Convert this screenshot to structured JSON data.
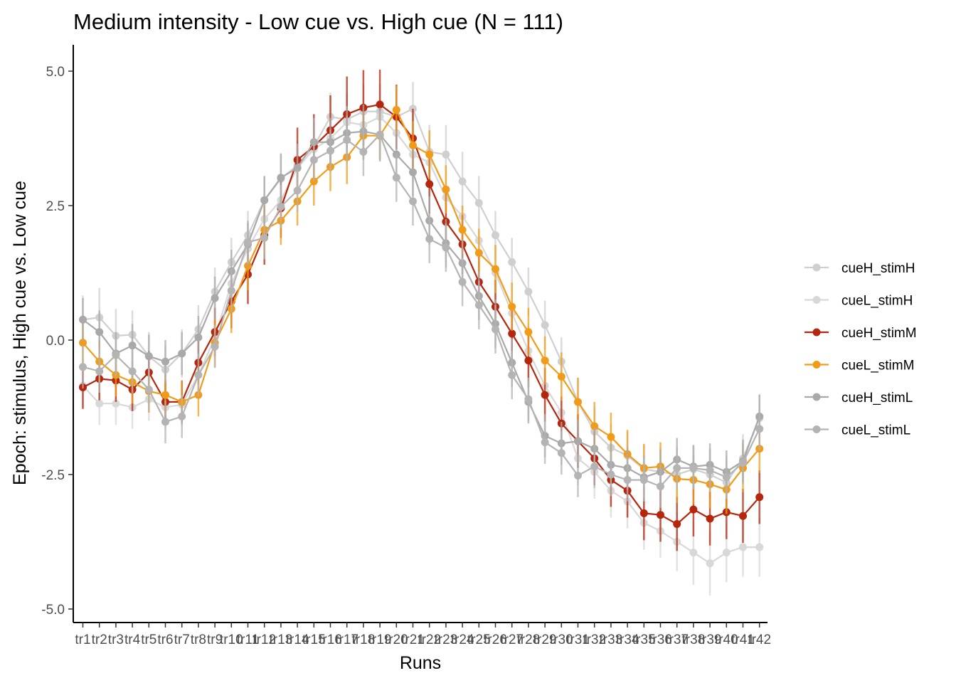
{
  "chart_data": {
    "type": "line",
    "title": "Medium intensity - Low cue vs. High cue (N = 111)",
    "xlabel": "Runs",
    "ylabel": "Epoch: stimulus, High cue vs. Low cue",
    "ylim": [
      -5.5,
      5.5
    ],
    "yticks": [
      5.0,
      2.5,
      0.0,
      -2.5,
      -5.0
    ],
    "ytick_labels": [
      "5.0",
      "2.5",
      "0.0",
      "-2.5",
      "-5.0"
    ],
    "grid": false,
    "legend_position": "right",
    "error_bars": true,
    "categories": [
      "tr1",
      "tr2",
      "tr3",
      "tr4",
      "tr5",
      "tr6",
      "tr7",
      "tr8",
      "tr9",
      "tr10",
      "tr11",
      "tr12",
      "tr13",
      "tr14",
      "tr15",
      "tr16",
      "tr17",
      "tr18",
      "tr19",
      "tr20",
      "tr21",
      "tr22",
      "tr23",
      "tr24",
      "tr25",
      "tr26",
      "tr27",
      "tr28",
      "tr29",
      "tr30",
      "tr31",
      "tr32",
      "tr33",
      "tr34",
      "tr35",
      "tr36",
      "tr37",
      "tr38",
      "tr39",
      "tr40",
      "tr41",
      "tr42"
    ],
    "series": [
      {
        "name": "cueH_stimH",
        "color": "#cfcfcf",
        "values": [
          0.38,
          0.42,
          0.08,
          0.1,
          -0.3,
          -0.55,
          -0.25,
          0.2,
          0.9,
          1.45,
          1.95,
          2.6,
          3.0,
          3.25,
          3.6,
          4.15,
          4.1,
          4.25,
          4.25,
          4.15,
          4.3,
          3.5,
          3.45,
          2.95,
          2.55,
          1.95,
          1.45,
          0.9,
          0.28,
          -0.4,
          -1.15,
          -1.7,
          -2.0,
          -2.15,
          -2.4,
          -2.45,
          -2.5,
          -2.4,
          -2.5,
          -2.65,
          -2.2,
          -1.45
        ],
        "err": [
          0.45,
          0.55,
          0.5,
          0.45,
          0.45,
          0.45,
          0.45,
          0.45,
          0.45,
          0.45,
          0.45,
          0.45,
          0.45,
          0.45,
          0.45,
          0.45,
          0.5,
          0.5,
          0.5,
          0.45,
          0.5,
          0.5,
          0.55,
          0.55,
          0.5,
          0.45,
          0.45,
          0.45,
          0.45,
          0.45,
          0.45,
          0.45,
          0.45,
          0.45,
          0.45,
          0.45,
          0.45,
          0.45,
          0.45,
          0.45,
          0.45,
          0.45
        ]
      },
      {
        "name": "cueL_stimH",
        "color": "#d8d8d8",
        "values": [
          -0.85,
          -1.18,
          -1.18,
          -1.25,
          -1.1,
          -1.25,
          -1.2,
          -0.65,
          0.05,
          1.05,
          1.7,
          2.25,
          2.6,
          3.2,
          3.55,
          3.75,
          4.05,
          4.0,
          4.15,
          3.85,
          3.45,
          3.3,
          2.65,
          2.3,
          1.85,
          1.25,
          0.5,
          -0.2,
          -0.85,
          -1.35,
          -2.2,
          -2.45,
          -2.8,
          -3.0,
          -3.4,
          -3.55,
          -3.75,
          -3.95,
          -4.15,
          -3.95,
          -3.85,
          -3.85
        ],
        "err": [
          0.4,
          0.4,
          0.4,
          0.4,
          0.4,
          0.4,
          0.4,
          0.4,
          0.4,
          0.4,
          0.4,
          0.4,
          0.45,
          0.45,
          0.45,
          0.45,
          0.5,
          0.5,
          0.5,
          0.5,
          0.5,
          0.5,
          0.5,
          0.5,
          0.5,
          0.5,
          0.5,
          0.5,
          0.5,
          0.5,
          0.5,
          0.5,
          0.5,
          0.5,
          0.5,
          0.5,
          0.55,
          0.6,
          0.6,
          0.55,
          0.55,
          0.55
        ]
      },
      {
        "name": "cueH_stimM",
        "color": "#b5260e",
        "values": [
          -0.88,
          -0.72,
          -0.75,
          -0.92,
          -0.6,
          -1.15,
          -1.15,
          -0.42,
          0.15,
          0.72,
          1.22,
          1.95,
          2.45,
          3.35,
          3.6,
          3.9,
          4.2,
          4.32,
          4.38,
          4.15,
          3.75,
          2.9,
          2.2,
          1.78,
          1.08,
          0.62,
          0.12,
          -0.38,
          -1.02,
          -1.55,
          -1.88,
          -2.2,
          -2.6,
          -2.8,
          -3.22,
          -3.25,
          -3.42,
          -3.15,
          -3.32,
          -3.2,
          -3.27,
          -2.92
        ],
        "err": [
          0.4,
          0.4,
          0.4,
          0.4,
          0.4,
          0.4,
          0.4,
          0.4,
          0.45,
          0.5,
          0.55,
          0.55,
          0.55,
          0.6,
          0.6,
          0.65,
          0.7,
          0.7,
          0.65,
          0.6,
          0.55,
          0.55,
          0.55,
          0.55,
          0.5,
          0.5,
          0.5,
          0.5,
          0.5,
          0.5,
          0.5,
          0.5,
          0.5,
          0.5,
          0.5,
          0.5,
          0.5,
          0.5,
          0.5,
          0.5,
          0.5,
          0.5
        ]
      },
      {
        "name": "cueL_stimM",
        "color": "#f09c1a",
        "values": [
          -0.05,
          -0.4,
          -0.65,
          -0.78,
          -0.95,
          -1.02,
          -1.15,
          -1.02,
          -0.05,
          0.58,
          1.38,
          2.05,
          2.22,
          2.58,
          2.95,
          3.22,
          3.4,
          3.8,
          3.8,
          4.28,
          3.62,
          3.45,
          2.8,
          2.05,
          1.62,
          1.32,
          0.62,
          0.15,
          -0.38,
          -0.68,
          -1.15,
          -1.6,
          -1.8,
          -2.12,
          -2.38,
          -2.35,
          -2.58,
          -2.6,
          -2.68,
          -2.78,
          -2.38,
          -2.02
        ],
        "err": [
          0.4,
          0.4,
          0.4,
          0.4,
          0.4,
          0.4,
          0.4,
          0.4,
          0.45,
          0.45,
          0.45,
          0.45,
          0.45,
          0.45,
          0.45,
          0.45,
          0.5,
          0.45,
          0.45,
          0.45,
          0.45,
          0.45,
          0.45,
          0.45,
          0.45,
          0.45,
          0.45,
          0.45,
          0.45,
          0.45,
          0.45,
          0.45,
          0.45,
          0.45,
          0.45,
          0.45,
          0.45,
          0.45,
          0.45,
          0.45,
          0.45,
          0.45
        ]
      },
      {
        "name": "cueH_stimL",
        "color": "#a9a9a9",
        "values": [
          0.38,
          0.15,
          -0.25,
          -0.1,
          -0.3,
          -0.4,
          -0.25,
          0.05,
          0.78,
          1.28,
          1.78,
          2.6,
          3.02,
          3.2,
          3.68,
          3.68,
          3.85,
          3.88,
          3.82,
          3.45,
          3.12,
          2.22,
          1.8,
          1.43,
          0.82,
          0.3,
          -0.42,
          -1.15,
          -1.78,
          -1.92,
          -1.88,
          -2.02,
          -2.32,
          -2.38,
          -2.55,
          -2.45,
          -2.22,
          -2.35,
          -2.32,
          -2.45,
          -2.25,
          -1.42
        ],
        "err": [
          0.4,
          0.4,
          0.4,
          0.4,
          0.4,
          0.4,
          0.4,
          0.4,
          0.4,
          0.4,
          0.4,
          0.45,
          0.45,
          0.45,
          0.45,
          0.45,
          0.5,
          0.5,
          0.5,
          0.45,
          0.45,
          0.45,
          0.45,
          0.45,
          0.45,
          0.45,
          0.45,
          0.4,
          0.4,
          0.4,
          0.4,
          0.4,
          0.4,
          0.4,
          0.4,
          0.4,
          0.4,
          0.4,
          0.4,
          0.4,
          0.4,
          0.4
        ]
      },
      {
        "name": "cueL_stimL",
        "color": "#b4b4b4",
        "values": [
          -0.5,
          -0.58,
          -0.28,
          -0.58,
          -0.92,
          -1.52,
          -1.42,
          -0.65,
          -0.12,
          0.92,
          1.82,
          1.9,
          2.48,
          2.78,
          3.35,
          3.52,
          3.72,
          3.5,
          3.82,
          3.02,
          2.58,
          1.88,
          1.72,
          1.08,
          0.65,
          0.2,
          -0.65,
          -1.1,
          -1.9,
          -2.1,
          -2.52,
          -2.35,
          -2.5,
          -2.6,
          -2.6,
          -2.72,
          -2.38,
          -2.38,
          -2.42,
          -2.55,
          -2.28,
          -1.65
        ],
        "err": [
          0.4,
          0.4,
          0.4,
          0.4,
          0.4,
          0.4,
          0.4,
          0.4,
          0.4,
          0.4,
          0.4,
          0.4,
          0.4,
          0.4,
          0.4,
          0.4,
          0.45,
          0.45,
          0.45,
          0.45,
          0.45,
          0.45,
          0.45,
          0.45,
          0.45,
          0.45,
          0.45,
          0.4,
          0.4,
          0.4,
          0.4,
          0.4,
          0.4,
          0.4,
          0.4,
          0.4,
          0.4,
          0.4,
          0.4,
          0.4,
          0.4,
          0.4
        ]
      }
    ]
  }
}
